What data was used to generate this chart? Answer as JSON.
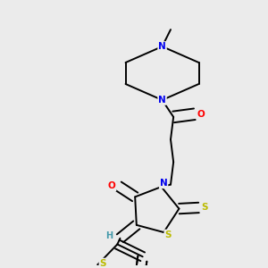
{
  "bg_color": "#ebebeb",
  "atom_colors": {
    "N": "#0000ee",
    "O": "#ff0000",
    "S": "#bbbb00",
    "C": "#000000",
    "H": "#4499aa"
  },
  "bond_color": "#000000"
}
